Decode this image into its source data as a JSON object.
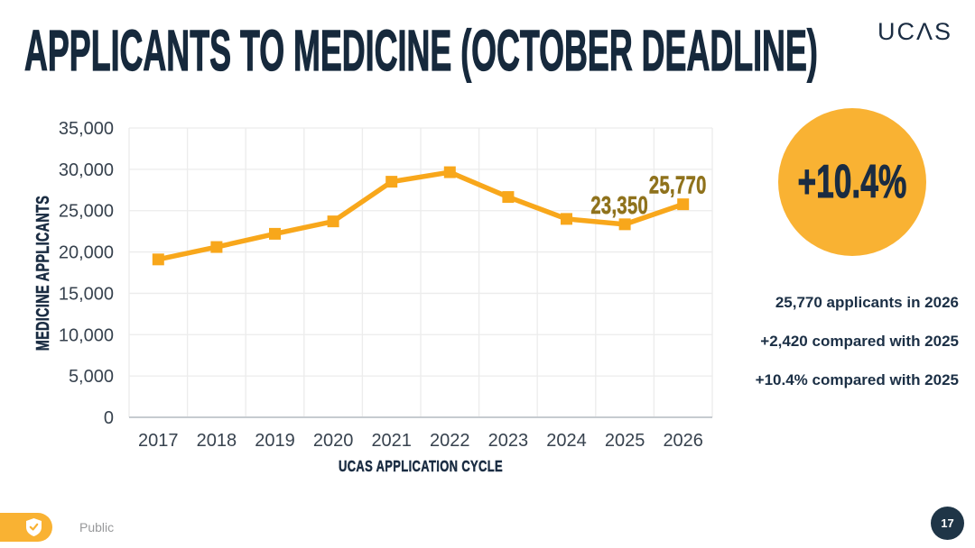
{
  "slide": {
    "title": "APPLICANTS TO MEDICINE (OCTOBER DEADLINE)",
    "page_number": "17"
  },
  "brand": {
    "logo_text": "UCΛS"
  },
  "chart_data": {
    "type": "line",
    "xlabel": "UCAS APPLICATION CYCLE",
    "ylabel": "MEDICINE APPLICANTS",
    "categories": [
      "2017",
      "2018",
      "2019",
      "2020",
      "2021",
      "2022",
      "2023",
      "2024",
      "2025",
      "2026"
    ],
    "values": [
      19100,
      20600,
      22200,
      23700,
      28500,
      29650,
      26650,
      24000,
      23350,
      25770
    ],
    "ylim": [
      0,
      35000
    ],
    "y_ticks": [
      {
        "value": 0,
        "label": "0"
      },
      {
        "value": 5000,
        "label": "5,000"
      },
      {
        "value": 10000,
        "label": "10,000"
      },
      {
        "value": 15000,
        "label": "15,000"
      },
      {
        "value": 20000,
        "label": "20,000"
      },
      {
        "value": 25000,
        "label": "25,000"
      },
      {
        "value": 30000,
        "label": "30,000"
      },
      {
        "value": 35000,
        "label": "35,000"
      }
    ],
    "grid": true,
    "legend": "none",
    "marker": "square",
    "annotations": [
      {
        "category": "2025",
        "text": "23,350"
      },
      {
        "category": "2026",
        "text": "25,770"
      }
    ],
    "colors": {
      "line": "#F8A71B",
      "marker": "#F8A71B",
      "data_label": "#8F721C",
      "grid": "#ECECEC",
      "axis": "#C6CBD0",
      "tick_text": "#37424E",
      "axis_title": "#1A2C42"
    }
  },
  "highlight": {
    "badge_text": "+10.4%",
    "circle_color": "#F9B233"
  },
  "stats": [
    "25,770 applicants in 2026",
    "+2,420 compared with 2025",
    "+10.4% compared with 2025"
  ],
  "footer": {
    "classification_label": "Public"
  }
}
